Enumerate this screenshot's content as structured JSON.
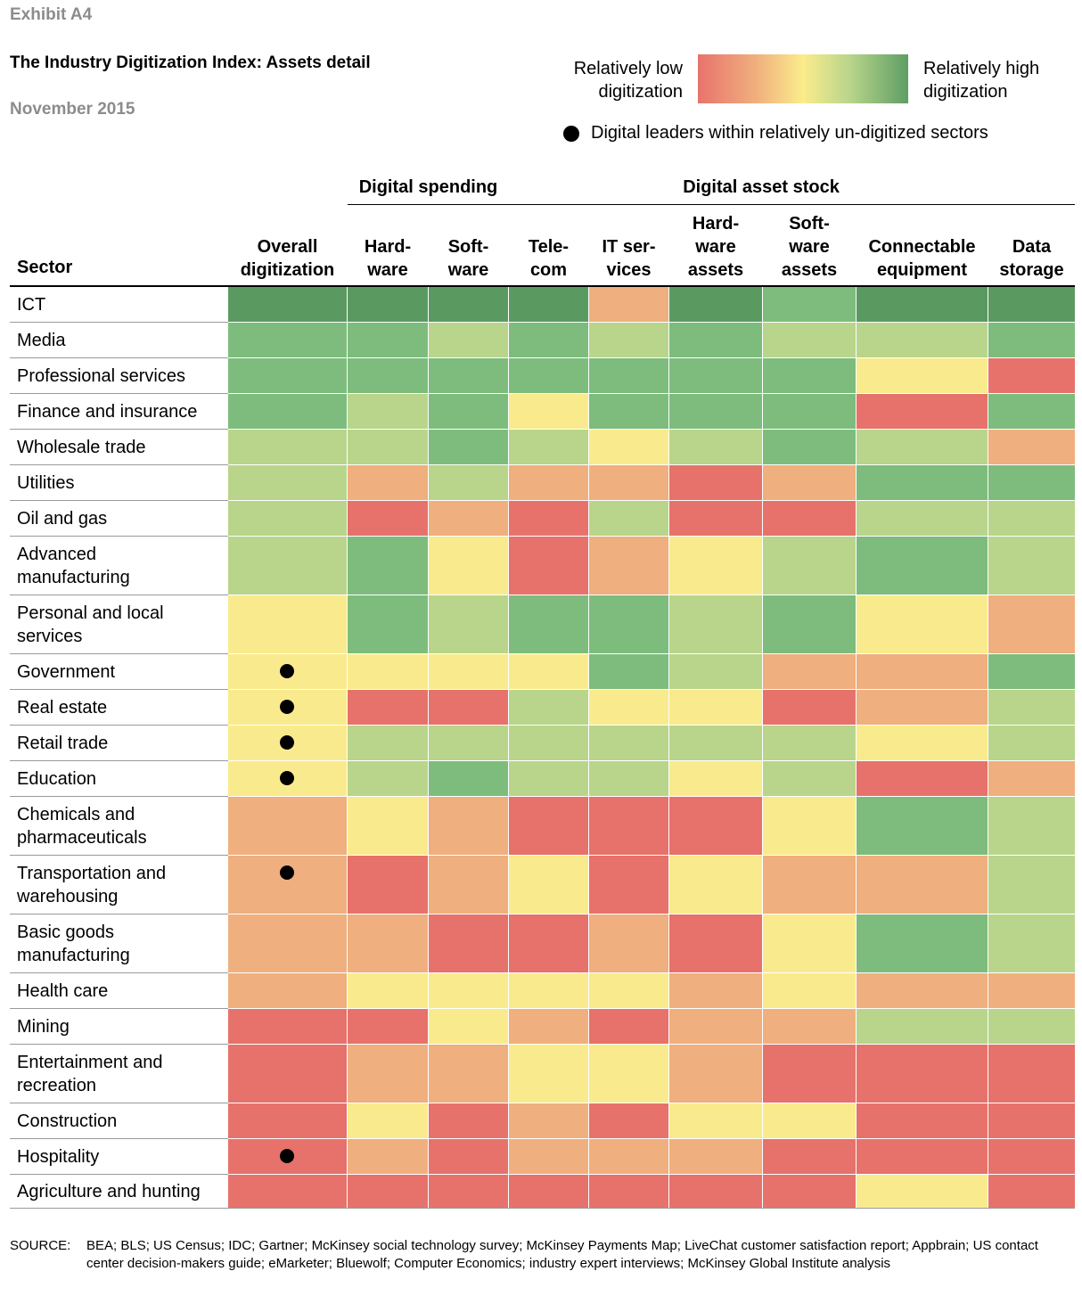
{
  "header": {
    "exhibit": "Exhibit A4",
    "title": "The Industry Digitization Index: Assets detail",
    "date": "November 2015"
  },
  "legend": {
    "low_line1": "Relatively low",
    "low_line2": "digitization",
    "high_line1": "Relatively high",
    "high_line2": "digitization",
    "dot_text": "Digital leaders within relatively un-digitized sectors"
  },
  "colors": {
    "5": "#5a9a61",
    "4": "#7dbc7d",
    "3": "#b8d58b",
    "2": "#f9eb8d",
    "1": "#efaf7e",
    "0": "#e6726b"
  },
  "chart_data": {
    "type": "heatmap",
    "title": "The Industry Digitization Index: Assets detail",
    "scale": "0 = relatively low digitization (red) … 5 = relatively high digitization (dark green)",
    "groups": [
      {
        "name": "Digital spending",
        "columns": [
          "Hard-ware",
          "Soft-ware",
          "Tele-com",
          "IT ser-vices"
        ]
      },
      {
        "name": "Digital asset stock",
        "columns": [
          "Hard-ware assets",
          "Soft-ware assets",
          "Connectable equipment",
          "Data storage"
        ]
      }
    ],
    "row_header": "Sector",
    "columns": [
      {
        "lines": [
          "Overall",
          "digitization"
        ]
      },
      {
        "lines": [
          "Hard-",
          "ware"
        ]
      },
      {
        "lines": [
          "Soft-",
          "ware"
        ]
      },
      {
        "lines": [
          "Tele-",
          "com"
        ]
      },
      {
        "lines": [
          "IT ser-",
          "vices"
        ]
      },
      {
        "lines": [
          "Hard-",
          "ware",
          "assets"
        ]
      },
      {
        "lines": [
          "Soft-",
          "ware",
          "assets"
        ]
      },
      {
        "lines": [
          "Connectable",
          "equipment"
        ]
      },
      {
        "lines": [
          "Data",
          "storage"
        ]
      }
    ],
    "rows": [
      {
        "name": [
          "ICT"
        ],
        "leader": false,
        "values": [
          5,
          5,
          5,
          5,
          1,
          5,
          4,
          5,
          5
        ]
      },
      {
        "name": [
          "Media"
        ],
        "leader": false,
        "values": [
          4,
          4,
          3,
          4,
          3,
          4,
          3,
          3,
          4
        ]
      },
      {
        "name": [
          "Professional services"
        ],
        "leader": false,
        "values": [
          4,
          4,
          4,
          4,
          4,
          4,
          4,
          2,
          0
        ]
      },
      {
        "name": [
          "Finance and insurance"
        ],
        "leader": false,
        "values": [
          4,
          3,
          4,
          2,
          4,
          4,
          4,
          0,
          4
        ]
      },
      {
        "name": [
          "Wholesale trade"
        ],
        "leader": false,
        "values": [
          3,
          3,
          4,
          3,
          2,
          3,
          4,
          3,
          1
        ]
      },
      {
        "name": [
          "Utilities"
        ],
        "leader": false,
        "values": [
          3,
          1,
          3,
          1,
          1,
          0,
          1,
          4,
          4
        ]
      },
      {
        "name": [
          "Oil and gas"
        ],
        "leader": false,
        "values": [
          3,
          0,
          1,
          0,
          3,
          0,
          0,
          3,
          3
        ]
      },
      {
        "name": [
          "Advanced",
          "manufacturing"
        ],
        "leader": false,
        "values": [
          3,
          4,
          2,
          0,
          1,
          2,
          3,
          4,
          3
        ]
      },
      {
        "name": [
          "Personal and local",
          "services"
        ],
        "leader": false,
        "values": [
          2,
          4,
          3,
          4,
          4,
          3,
          4,
          2,
          1
        ]
      },
      {
        "name": [
          "Government"
        ],
        "leader": true,
        "values": [
          2,
          2,
          2,
          2,
          4,
          3,
          1,
          1,
          4
        ]
      },
      {
        "name": [
          "Real estate"
        ],
        "leader": true,
        "values": [
          2,
          0,
          0,
          3,
          2,
          2,
          0,
          1,
          3
        ]
      },
      {
        "name": [
          "Retail trade"
        ],
        "leader": true,
        "values": [
          2,
          3,
          3,
          3,
          3,
          3,
          3,
          2,
          3
        ]
      },
      {
        "name": [
          "Education"
        ],
        "leader": true,
        "values": [
          2,
          3,
          4,
          3,
          3,
          2,
          3,
          0,
          1
        ]
      },
      {
        "name": [
          "Chemicals and",
          "pharmaceuticals"
        ],
        "leader": false,
        "values": [
          1,
          2,
          1,
          0,
          0,
          0,
          2,
          4,
          3
        ]
      },
      {
        "name": [
          "Transportation and",
          "warehousing"
        ],
        "leader": true,
        "values": [
          1,
          0,
          1,
          2,
          0,
          2,
          1,
          1,
          3
        ]
      },
      {
        "name": [
          "Basic goods",
          "manufacturing"
        ],
        "leader": false,
        "values": [
          1,
          1,
          0,
          0,
          1,
          0,
          2,
          4,
          3
        ]
      },
      {
        "name": [
          "Health care"
        ],
        "leader": false,
        "values": [
          1,
          2,
          2,
          2,
          2,
          1,
          2,
          1,
          1
        ]
      },
      {
        "name": [
          "Mining"
        ],
        "leader": false,
        "values": [
          0,
          0,
          2,
          1,
          0,
          1,
          1,
          3,
          3
        ]
      },
      {
        "name": [
          "Entertainment and",
          "recreation"
        ],
        "leader": false,
        "values": [
          0,
          1,
          1,
          2,
          2,
          1,
          0,
          0,
          0
        ]
      },
      {
        "name": [
          "Construction"
        ],
        "leader": false,
        "values": [
          0,
          2,
          0,
          1,
          0,
          2,
          2,
          0,
          0
        ]
      },
      {
        "name": [
          "Hospitality"
        ],
        "leader": true,
        "values": [
          0,
          1,
          0,
          1,
          1,
          1,
          0,
          0,
          0
        ]
      },
      {
        "name": [
          "Agriculture and hunting"
        ],
        "leader": false,
        "values": [
          0,
          0,
          0,
          0,
          0,
          0,
          0,
          2,
          0
        ]
      }
    ]
  },
  "footer": {
    "source_label": "SOURCE:",
    "source_text": "BEA; BLS; US Census; IDC; Gartner; McKinsey social technology survey; McKinsey Payments Map; LiveChat customer satisfaction report; Appbrain; US contact center decision-makers guide; eMarketer; Bluewolf; Computer Economics; industry expert interviews; McKinsey Global Institute analysis"
  }
}
